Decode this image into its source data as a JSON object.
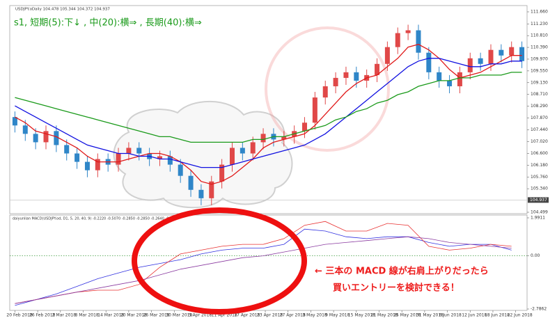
{
  "chart_data": [
    {
      "type": "candlestick",
      "symbol_info": "USDJPY.oDaily  104.478 105.344 104.372 104.937",
      "title": "s1,  短期(5):下↓ ,  中(20):横⇒ ,  長期(40):横⇒",
      "up_color": "#e04848",
      "down_color": "#2f86c8",
      "xlim": [
        -0.5,
        49.5
      ],
      "ylim": [
        104.499,
        111.66
      ],
      "yticks": [
        {
          "value": 111.66,
          "label": "111.660"
        },
        {
          "value": 111.23,
          "label": "111.230"
        },
        {
          "value": 110.81,
          "label": "110.810"
        },
        {
          "value": 110.39,
          "label": "110.390"
        },
        {
          "value": 109.97,
          "label": "109.970"
        },
        {
          "value": 109.55,
          "label": "109.550"
        },
        {
          "value": 109.13,
          "label": "109.130"
        },
        {
          "value": 108.71,
          "label": "108.710"
        },
        {
          "value": 108.29,
          "label": "108.290"
        },
        {
          "value": 107.87,
          "label": "107.870"
        },
        {
          "value": 107.44,
          "label": "107.440"
        },
        {
          "value": 107.02,
          "label": "107.020"
        },
        {
          "value": 106.6,
          "label": "106.600"
        },
        {
          "value": 106.18,
          "label": "106.180"
        },
        {
          "value": 105.76,
          "label": "105.760"
        },
        {
          "value": 105.34,
          "label": "105.340"
        },
        {
          "value": 104.499,
          "label": "104.499"
        }
      ],
      "last_price": {
        "value": 104.937,
        "label": "104.937"
      },
      "open": [
        107.9,
        107.6,
        107.3,
        107.0,
        107.4,
        106.9,
        106.6,
        106.3,
        106.0,
        106.4,
        106.2,
        106.6,
        106.8,
        106.6,
        106.4,
        106.5,
        106.2,
        105.8,
        105.3,
        105.0,
        105.6,
        106.2,
        106.8,
        106.6,
        107.0,
        107.3,
        107.1,
        107.2,
        107.4,
        107.7,
        108.6,
        109.0,
        109.3,
        109.5,
        109.2,
        109.4,
        109.8,
        110.4,
        110.9,
        111.0,
        110.2,
        109.5,
        109.2,
        109.0,
        109.5,
        110.0,
        109.8,
        110.3,
        110.1,
        110.4
      ],
      "high": [
        108.1,
        107.8,
        107.5,
        107.6,
        107.6,
        107.1,
        106.8,
        106.5,
        106.6,
        106.6,
        106.8,
        107.0,
        107.0,
        106.8,
        106.7,
        106.7,
        106.4,
        106.0,
        105.5,
        105.8,
        106.4,
        107.0,
        107.0,
        107.2,
        107.5,
        107.5,
        107.4,
        107.6,
        107.9,
        108.8,
        109.2,
        109.5,
        109.7,
        109.7,
        109.6,
        110.0,
        110.6,
        111.1,
        111.2,
        111.2,
        110.4,
        109.7,
        109.4,
        109.7,
        110.2,
        110.2,
        110.5,
        110.5,
        110.6,
        110.6
      ],
      "low": [
        107.35,
        107.05,
        106.75,
        106.75,
        106.65,
        106.35,
        106.05,
        105.75,
        105.75,
        105.95,
        105.95,
        106.35,
        106.35,
        106.15,
        106.15,
        105.95,
        105.55,
        105.05,
        104.75,
        104.75,
        105.35,
        105.95,
        106.35,
        106.35,
        106.75,
        106.85,
        106.85,
        106.95,
        107.15,
        107.45,
        108.35,
        108.75,
        109.05,
        108.95,
        108.95,
        109.15,
        109.55,
        110.15,
        110.65,
        109.95,
        109.25,
        108.95,
        108.75,
        108.75,
        109.25,
        109.55,
        109.55,
        109.85,
        109.85,
        109.65
      ],
      "close": [
        107.6,
        107.3,
        107.0,
        107.4,
        106.9,
        106.6,
        106.3,
        106.0,
        106.4,
        106.2,
        106.6,
        106.8,
        106.6,
        106.4,
        106.5,
        106.2,
        105.8,
        105.3,
        105.0,
        105.6,
        106.2,
        106.8,
        106.6,
        107.0,
        107.3,
        107.1,
        107.2,
        107.4,
        107.7,
        108.6,
        109.0,
        109.3,
        109.5,
        109.2,
        109.4,
        109.8,
        110.4,
        110.9,
        111.0,
        110.2,
        109.5,
        109.2,
        109.0,
        109.5,
        110.0,
        109.8,
        110.3,
        110.1,
        110.4,
        109.9
      ],
      "series": [
        {
          "name": "MA(5)",
          "color": "#e01818",
          "values": [
            107.9,
            107.7,
            107.4,
            107.3,
            107.2,
            107.0,
            106.8,
            106.5,
            106.3,
            106.3,
            106.3,
            106.4,
            106.5,
            106.6,
            106.6,
            106.5,
            106.3,
            106.0,
            105.6,
            105.5,
            105.6,
            105.8,
            106.1,
            106.4,
            106.8,
            107.0,
            107.1,
            107.2,
            107.3,
            107.6,
            108.0,
            108.4,
            108.8,
            109.1,
            109.3,
            109.4,
            109.7,
            110.0,
            110.4,
            110.5,
            110.3,
            110.0,
            109.6,
            109.3,
            109.4,
            109.5,
            109.7,
            109.9,
            110.1,
            110.1
          ]
        },
        {
          "name": "MA(20)",
          "color": "#1010e0",
          "values": [
            108.3,
            108.1,
            107.9,
            107.7,
            107.5,
            107.3,
            107.1,
            106.9,
            106.8,
            106.7,
            106.6,
            106.6,
            106.5,
            106.5,
            106.4,
            106.4,
            106.3,
            106.2,
            106.1,
            106.1,
            106.1,
            106.2,
            106.3,
            106.4,
            106.5,
            106.6,
            106.7,
            106.8,
            106.9,
            107.1,
            107.3,
            107.6,
            107.9,
            108.2,
            108.5,
            108.8,
            109.1,
            109.4,
            109.7,
            109.9,
            110.0,
            110.0,
            109.9,
            109.8,
            109.7,
            109.7,
            109.8,
            109.8,
            109.9,
            109.9
          ]
        },
        {
          "name": "MA(40)",
          "color": "#1a9a1a",
          "values": [
            108.6,
            108.5,
            108.4,
            108.3,
            108.2,
            108.1,
            108.0,
            107.9,
            107.8,
            107.7,
            107.6,
            107.5,
            107.4,
            107.3,
            107.2,
            107.2,
            107.1,
            107.0,
            107.0,
            107.0,
            107.0,
            107.0,
            107.0,
            107.1,
            107.1,
            107.2,
            107.2,
            107.3,
            107.4,
            107.5,
            107.6,
            107.8,
            107.9,
            108.1,
            108.2,
            108.4,
            108.5,
            108.7,
            108.8,
            109.0,
            109.1,
            109.2,
            109.2,
            109.3,
            109.3,
            109.4,
            109.4,
            109.4,
            109.5,
            109.5
          ]
        }
      ]
    },
    {
      "type": "line",
      "title": "daiyunlian MACD(USDJPY.od, D1, 5, 20, 40, 9) -0.2220 -0.5070 -0.2850 -0.2850 -0.2640 -0.2850",
      "annotation": [
        "← 三本の MACD 線が右肩上がりだったら",
        "買いエントリーを検討できる！"
      ],
      "x": [
        0,
        2,
        4,
        6,
        8,
        10,
        12,
        14,
        16,
        18,
        20,
        22,
        24,
        26,
        28,
        30,
        32,
        34,
        36,
        38,
        40,
        42,
        44,
        46,
        48
      ],
      "xlim": [
        -0.5,
        49.5
      ],
      "xticks": [
        {
          "value": 0,
          "label": "20 Feb 2018"
        },
        {
          "value": 2.2,
          "label": "26 Feb 2018"
        },
        {
          "value": 4.4,
          "label": "2 Mar 2018"
        },
        {
          "value": 6.6,
          "label": "8 Mar 2018"
        },
        {
          "value": 8.8,
          "label": "14 Mar 2018"
        },
        {
          "value": 11,
          "label": "20 Mar 2018"
        },
        {
          "value": 13.2,
          "label": "26 Mar 2018"
        },
        {
          "value": 15.4,
          "label": "30 Mar 2018"
        },
        {
          "value": 17.6,
          "label": "5 Apr 2018"
        },
        {
          "value": 19.8,
          "label": "11 Apr 2018"
        },
        {
          "value": 22,
          "label": "17 Apr 2018"
        },
        {
          "value": 24.2,
          "label": "23 Apr 2018"
        },
        {
          "value": 26.4,
          "label": "27 Apr 2018"
        },
        {
          "value": 28.6,
          "label": "3 May 2018"
        },
        {
          "value": 30.8,
          "label": "9 May 2018"
        },
        {
          "value": 33,
          "label": "15 May 2018"
        },
        {
          "value": 35.2,
          "label": "21 May 2018"
        },
        {
          "value": 37.4,
          "label": "25 May 2018"
        },
        {
          "value": 39.6,
          "label": "31 May 2018"
        },
        {
          "value": 41.8,
          "label": "6 Jun 2018"
        },
        {
          "value": 44,
          "label": "12 Jun 2018"
        },
        {
          "value": 46.2,
          "label": "18 Jun 2018"
        },
        {
          "value": 48.4,
          "label": "22 Jun 2018"
        }
      ],
      "ylim": [
        -2.7862,
        1.9911
      ],
      "yticks": [
        {
          "value": 1.9911,
          "label": "1.9911"
        },
        {
          "value": 0,
          "label": "0.00"
        },
        {
          "value": -2.7862,
          "label": "-2.7862"
        }
      ],
      "series": [
        {
          "name": "MACD 1",
          "color": "#3030e0",
          "values": [
            -2.6,
            -2.3,
            -2.0,
            -1.6,
            -1.2,
            -0.9,
            -0.6,
            -0.4,
            -0.2,
            0.1,
            0.3,
            0.4,
            0.4,
            0.6,
            1.4,
            1.3,
            1.0,
            0.9,
            1.0,
            1.0,
            0.7,
            0.5,
            0.6,
            0.6,
            0.3
          ]
        },
        {
          "name": "MACD 2",
          "color": "#e83030",
          "values": [
            -2.5,
            -2.3,
            -2.1,
            -1.9,
            -1.8,
            -1.8,
            -1.5,
            -0.6,
            0.1,
            0.3,
            0.5,
            0.6,
            0.6,
            0.9,
            1.6,
            1.8,
            1.3,
            1.3,
            1.7,
            1.6,
            0.5,
            0.3,
            0.4,
            0.6,
            0.5
          ]
        },
        {
          "name": "MACD 3",
          "color": "#8a3aa0",
          "values": [
            -2.5,
            -2.3,
            -2.1,
            -1.9,
            -1.7,
            -1.5,
            -1.3,
            -1.0,
            -0.7,
            -0.5,
            -0.3,
            -0.1,
            0.0,
            0.2,
            0.4,
            0.6,
            0.7,
            0.8,
            0.9,
            1.0,
            0.9,
            0.7,
            0.6,
            0.5,
            0.4
          ]
        }
      ]
    }
  ]
}
